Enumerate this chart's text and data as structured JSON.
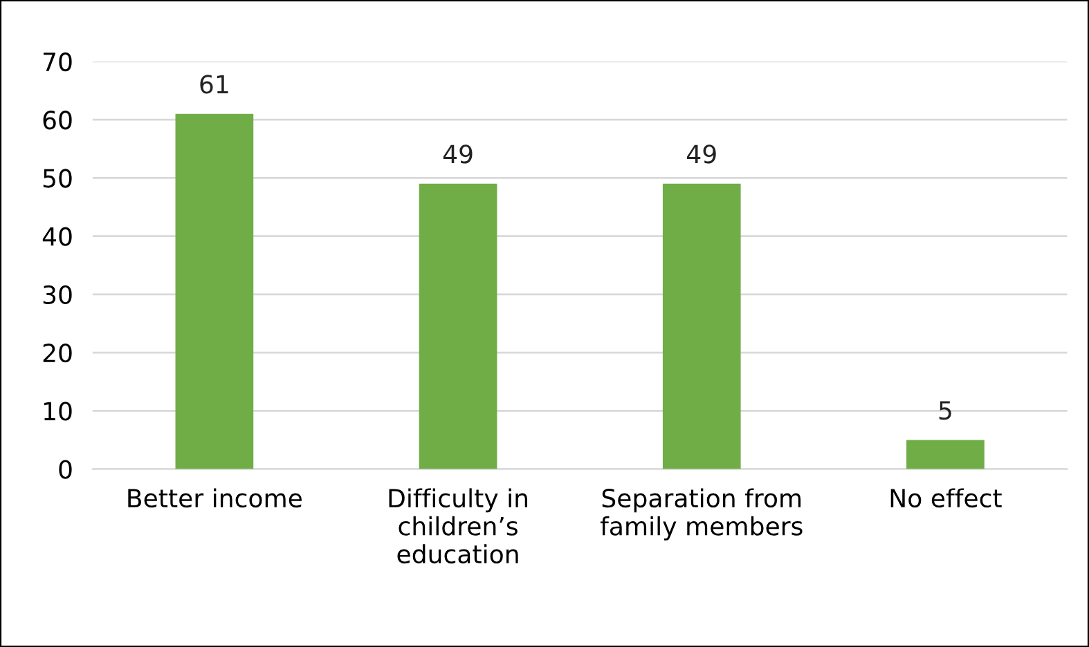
{
  "chart_data": {
    "type": "bar",
    "categories": [
      "Better income",
      "Difficulty in\nchildren’s\neducation",
      "Separation from\nfamily members",
      "No effect"
    ],
    "values": [
      61,
      49,
      49,
      5
    ],
    "color": "#70ad47",
    "ylim": [
      0,
      70
    ],
    "yticks": [
      0,
      10,
      20,
      30,
      40,
      50,
      60,
      70
    ],
    "grid": "y",
    "data_labels": true
  }
}
